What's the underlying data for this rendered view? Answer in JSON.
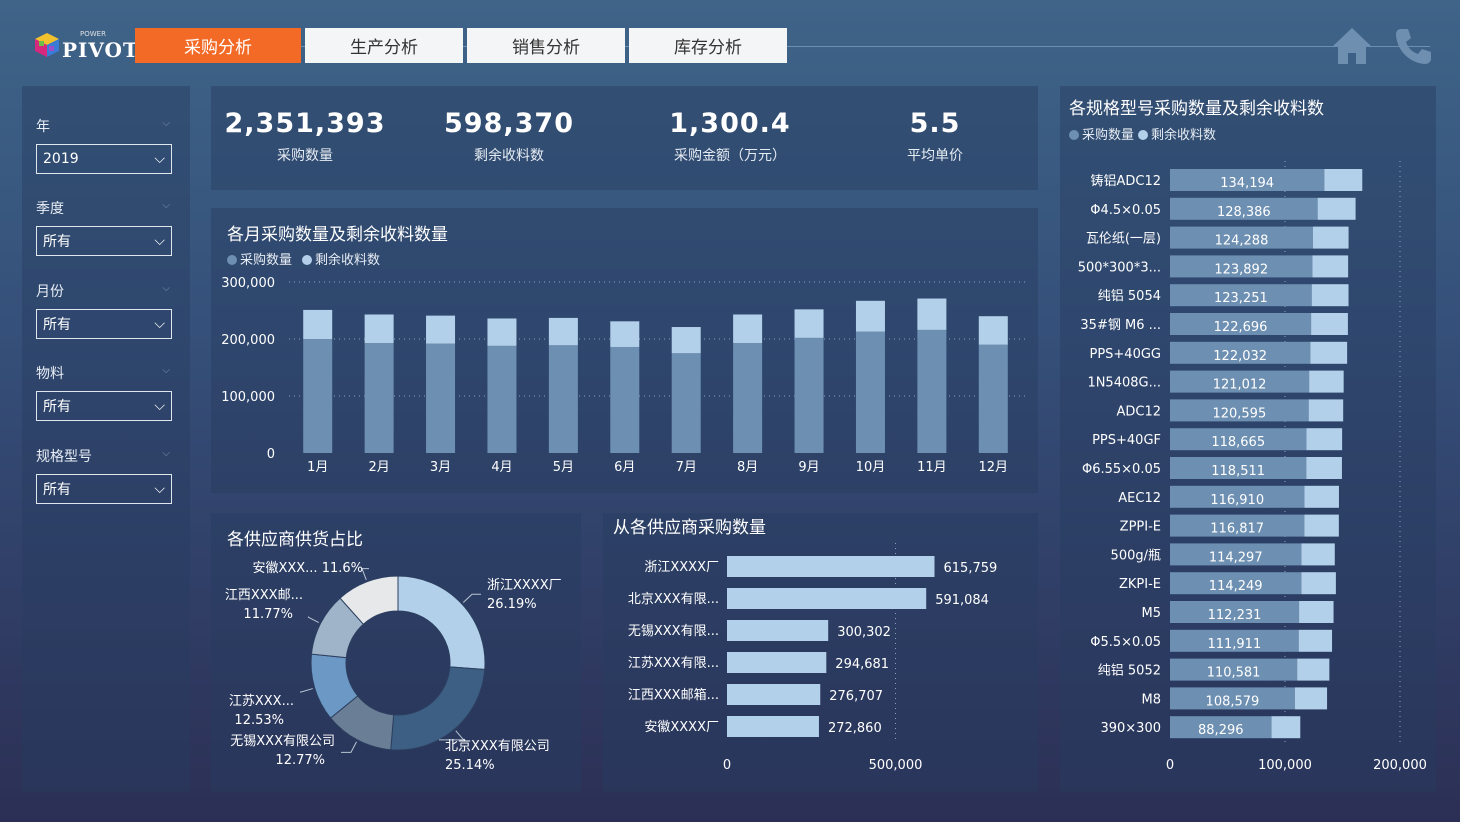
{
  "header": {
    "logo_sup": "POWER",
    "logo_text": "PIVOT",
    "tabs": [
      {
        "label": "采购分析",
        "active": true
      },
      {
        "label": "生产分析",
        "active": false
      },
      {
        "label": "销售分析",
        "active": false
      },
      {
        "label": "库存分析",
        "active": false
      }
    ],
    "icons": [
      "home-icon",
      "phone-icon"
    ]
  },
  "filters": [
    {
      "label": "年",
      "value": "2019"
    },
    {
      "label": "季度",
      "value": "所有"
    },
    {
      "label": "月份",
      "value": "所有"
    },
    {
      "label": "物料",
      "value": "所有"
    },
    {
      "label": "规格型号",
      "value": "所有"
    }
  ],
  "kpis": [
    {
      "value": "2,351,393",
      "label": "采购数量"
    },
    {
      "value": "598,370",
      "label": "剩余收料数"
    },
    {
      "value": "1,300.4",
      "label": "采购金额（万元）"
    },
    {
      "value": "5.5",
      "label": "平均单价"
    }
  ],
  "colors": {
    "series1": "#6d8fb2",
    "series2": "#b3d0ea",
    "pie": [
      "#b3d0ea",
      "#3d5f84",
      "#6a7f96",
      "#6b98c4",
      "#9fb4c8",
      "#e6e8ea"
    ]
  },
  "chart_data": [
    {
      "type": "bar",
      "title": "各月采购数量及剩余收料数量",
      "stacked": true,
      "categories": [
        "1月",
        "2月",
        "3月",
        "4月",
        "5月",
        "6月",
        "7月",
        "8月",
        "9月",
        "10月",
        "11月",
        "12月"
      ],
      "series": [
        {
          "name": "采购数量",
          "values": [
            200000,
            193000,
            192000,
            188000,
            189000,
            186000,
            175000,
            193000,
            202000,
            213000,
            216000,
            190000
          ]
        },
        {
          "name": "剩余收料数",
          "values": [
            51000,
            50000,
            49000,
            48000,
            48000,
            45000,
            46000,
            50000,
            50000,
            54000,
            55000,
            50000
          ]
        }
      ],
      "ylim": [
        0,
        300000
      ],
      "yticks": [
        "0",
        "100,000",
        "200,000",
        "300,000"
      ],
      "legend": "top-left"
    },
    {
      "type": "pie",
      "title": "各供应商供货占比",
      "donut": true,
      "slices": [
        {
          "name": "浙江XXXX厂",
          "value": 26.19,
          "label": "26.19%"
        },
        {
          "name": "北京XXX有限公司",
          "value": 25.14,
          "label": "25.14%"
        },
        {
          "name": "无锡XXX有限公司",
          "value": 12.77,
          "label": "12.77%"
        },
        {
          "name": "江苏XXX...",
          "value": 12.53,
          "label": "12.53%"
        },
        {
          "name": "江西XXX邮...",
          "value": 11.77,
          "label": "11.77%"
        },
        {
          "name": "安徽XXX...",
          "value": 11.6,
          "label": "11.6%"
        }
      ]
    },
    {
      "type": "bar",
      "orientation": "horizontal",
      "title": "从各供应商采购数量",
      "categories": [
        "浙江XXXX厂",
        "北京XXX有限...",
        "无锡XXX有限...",
        "江苏XXX有限...",
        "江西XXX邮箱...",
        "安徽XXXX厂"
      ],
      "values": [
        615759,
        591084,
        300302,
        294681,
        276707,
        272860
      ],
      "labels": [
        "615,759",
        "591,084",
        "300,302",
        "294,681",
        "276,707",
        "272,860"
      ],
      "xlim": [
        0,
        1000000
      ],
      "xticks": [
        "0",
        "500,000"
      ]
    },
    {
      "type": "bar",
      "orientation": "horizontal",
      "stacked": true,
      "title": "各规格型号采购数量及剩余收料数",
      "categories": [
        "铸铝ADC12",
        "Φ4.5×0.05",
        "瓦伦纸(一层)",
        "500*300*3...",
        "纯铝 5054",
        "35#钢 M6 ...",
        "PPS+40GG",
        "1N5408G...",
        "ADC12",
        "PPS+40GF",
        "Φ6.55×0.05",
        "AEC12",
        "ZPPI-E",
        "500g/瓶",
        "ZKPI-E",
        "M5",
        "Φ5.5×0.05",
        "纯铝 5052",
        "M8",
        "390×300"
      ],
      "series": [
        {
          "name": "采购数量",
          "values": [
            134194,
            128386,
            124288,
            123892,
            123251,
            122696,
            122032,
            121012,
            120595,
            118665,
            118511,
            116910,
            116817,
            114297,
            114249,
            112231,
            111911,
            110581,
            108579,
            88296
          ]
        },
        {
          "name": "剩余收料数",
          "values": [
            33000,
            33000,
            31000,
            31000,
            32000,
            32000,
            32000,
            30000,
            30000,
            31000,
            31000,
            30000,
            30000,
            29000,
            30000,
            30000,
            29000,
            28000,
            28000,
            25000
          ]
        }
      ],
      "labels": [
        "134,194",
        "128,386",
        "124,288",
        "123,892",
        "123,251",
        "122,696",
        "122,032",
        "121,012",
        "120,595",
        "118,665",
        "118,511",
        "116,910",
        "116,817",
        "114,297",
        "114,249",
        "112,231",
        "111,911",
        "110,581",
        "108,579",
        "88,296"
      ],
      "xlim": [
        0,
        200000
      ],
      "xticks": [
        "0",
        "100,000",
        "200,000"
      ],
      "legend": "top-left"
    }
  ]
}
